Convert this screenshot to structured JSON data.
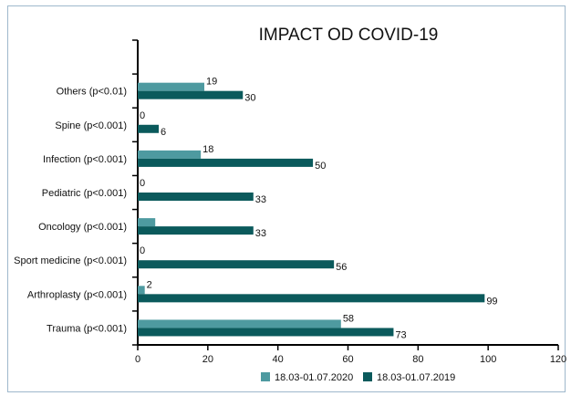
{
  "chart_data": {
    "type": "bar",
    "orientation": "horizontal",
    "title": "IMPACT OD COVID-19",
    "categories": [
      "Trauma (p<0.001)",
      "Arthroplasty (p<0.001)",
      "Sport medicine (p<0.001)",
      "Oncology (p<0.001)",
      "Pediatric (p<0.001)",
      "Infection (p<0.001)",
      "Spine (p<0.001)",
      "Others (p<0.01)"
    ],
    "series": [
      {
        "name": "18.03-01.07.2020",
        "color": "#4e9aa0",
        "values": [
          58,
          2,
          0,
          5,
          0,
          18,
          0,
          19
        ],
        "labels": [
          "58",
          "2",
          "0",
          "",
          "0",
          "18",
          "0",
          "19"
        ]
      },
      {
        "name": "18.03-01.07.2019",
        "color": "#0b5a5c",
        "values": [
          73,
          99,
          56,
          33,
          33,
          50,
          6,
          30
        ],
        "labels": [
          "73",
          "99",
          "56",
          "33",
          "33",
          "50",
          "6",
          "30"
        ]
      }
    ],
    "xlim": [
      0,
      120
    ],
    "xticks": [
      "0",
      "20",
      "40",
      "60",
      "80",
      "100",
      "120"
    ],
    "legend_position": "bottom",
    "grid": false
  }
}
